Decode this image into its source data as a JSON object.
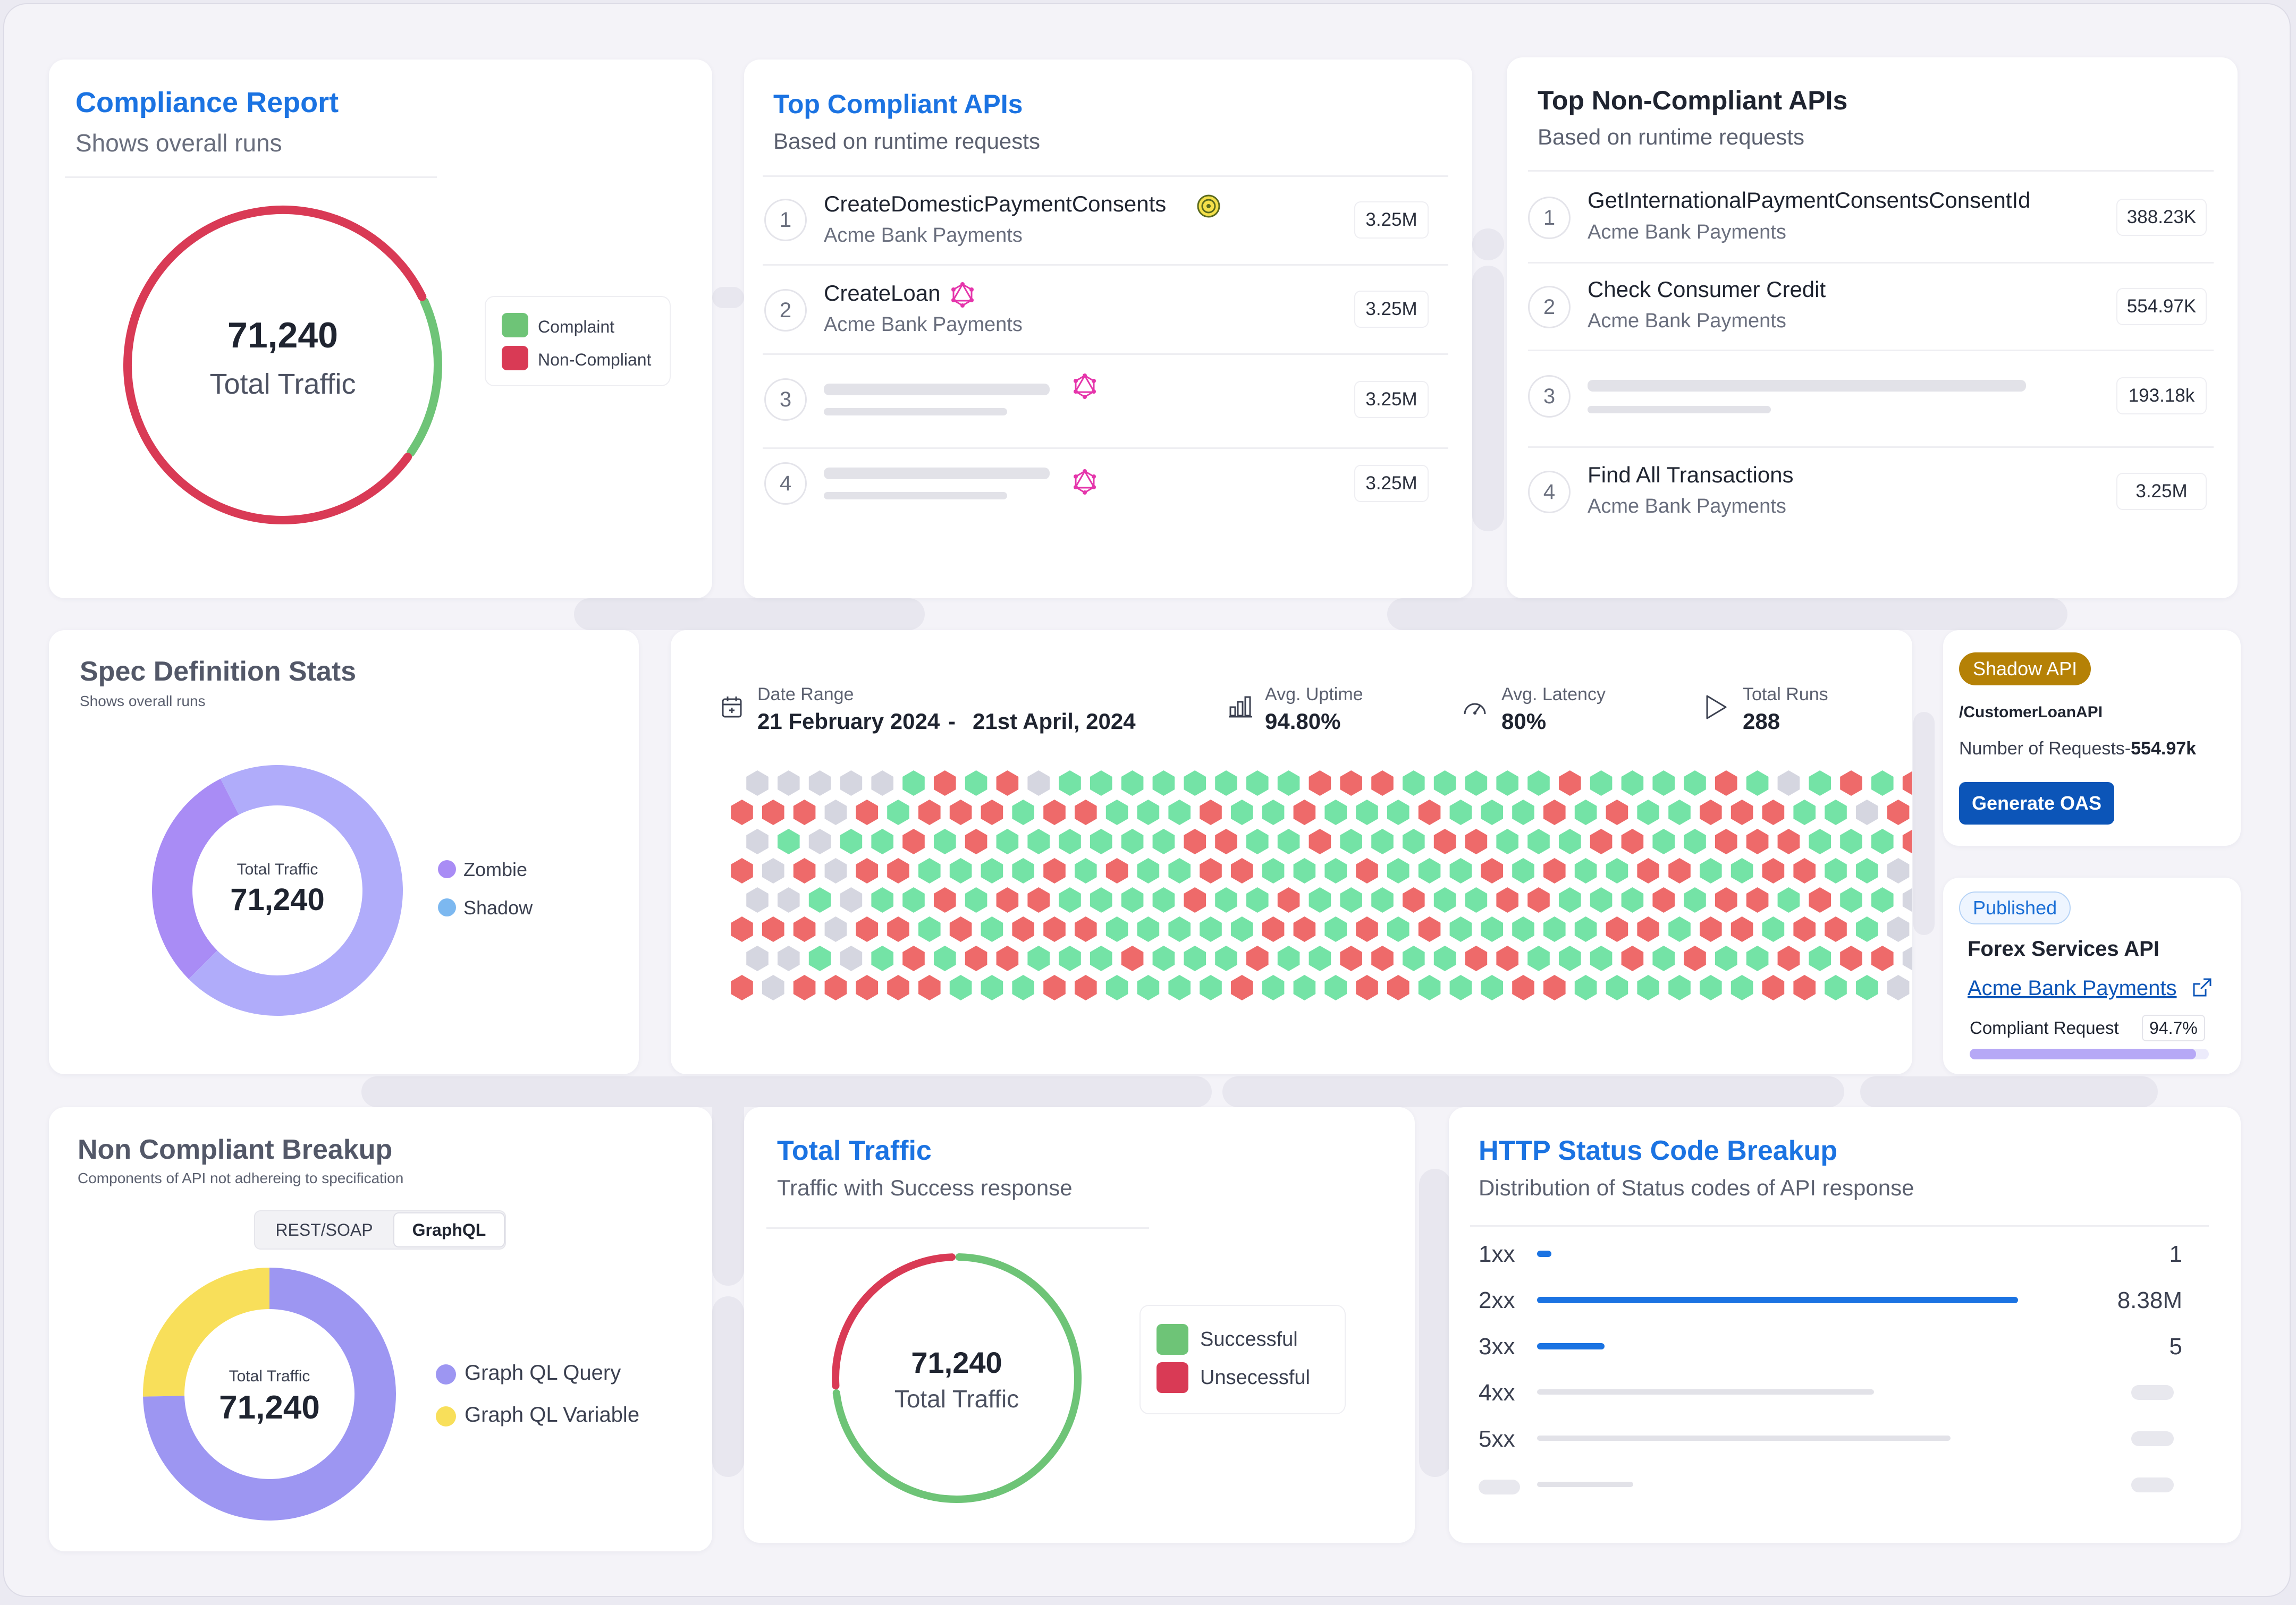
{
  "compliance_report": {
    "title": "Compliance Report",
    "subtitle": "Shows overall runs",
    "total_value": "71,240",
    "total_label": "Total Traffic",
    "legend": [
      {
        "label": "Complaint",
        "color": "#6ec477"
      },
      {
        "label": "Non-Compliant",
        "color": "#d93a55"
      }
    ],
    "compliant_fraction": 0.12
  },
  "top_compliant": {
    "title": "Top Compliant APIs",
    "subtitle": "Based on runtime requests",
    "items": [
      {
        "rank": "1",
        "name": "CreateDomesticPaymentConsents",
        "org": "Acme Bank Payments",
        "count": "3.25M",
        "icon": "target-icon"
      },
      {
        "rank": "2",
        "name": "CreateLoan",
        "org": "Acme Bank Payments",
        "count": "3.25M",
        "icon": "graphql-icon"
      },
      {
        "rank": "3",
        "name": "",
        "org": "",
        "count": "3.25M",
        "icon": "graphql-icon"
      },
      {
        "rank": "4",
        "name": "",
        "org": "",
        "count": "3.25M",
        "icon": "graphql-icon"
      }
    ]
  },
  "top_noncompliant": {
    "title": "Top Non-Compliant APIs",
    "subtitle": "Based on runtime requests",
    "items": [
      {
        "rank": "1",
        "name": "GetInternationalPaymentConsentsConsentId",
        "org": "Acme Bank Payments",
        "count": "388.23K"
      },
      {
        "rank": "2",
        "name": "Check Consumer Credit",
        "org": "Acme Bank Payments",
        "count": "554.97K"
      },
      {
        "rank": "3",
        "name": "",
        "org": "",
        "count": "193.18k"
      },
      {
        "rank": "4",
        "name": "Find All Transactions",
        "org": "Acme Bank Payments",
        "count": "3.25M"
      }
    ]
  },
  "spec_stats": {
    "title": "Spec Definition Stats",
    "subtitle": "Shows overall runs",
    "center_label": "Total Traffic",
    "center_value": "71,240",
    "legend": [
      {
        "label": "Zombie",
        "color": "#a98cf5"
      },
      {
        "label": "Shadow",
        "color": "#7cb8f0"
      }
    ],
    "zombie_fraction": 0.3
  },
  "runs": {
    "date_range_label": "Date Range",
    "date_from": "21 February 2024",
    "date_sep": "-",
    "date_to": "21st April, 2024",
    "uptime_label": "Avg. Uptime",
    "uptime_value": "94.80%",
    "latency_label": "Avg. Latency",
    "latency_value": "80%",
    "total_runs_label": "Total Runs",
    "total_runs_value": "288",
    "colors": {
      "success": "#74e3a6",
      "failure": "#ee6a6a",
      "idle": "#d5d6e0"
    }
  },
  "shadow_api": {
    "badge": "Shadow API",
    "path": "/CustomerLoanAPI",
    "requests_label": "Number of Requests-",
    "requests_value": "554.97k",
    "button": "Generate OAS"
  },
  "published_api": {
    "badge": "Published",
    "name": "Forex Services API",
    "link": "Acme Bank Payments",
    "compliant_label": "Compliant Request",
    "compliant_value": "94.7%",
    "compliant_fraction": 0.947
  },
  "non_compliant_breakup": {
    "title": "Non Compliant Breakup",
    "subtitle": "Components of API not adhereing to specification",
    "tabs": [
      "REST/SOAP",
      "GraphQL"
    ],
    "active_tab": "GraphQL",
    "center_label": "Total Traffic",
    "center_value": "71,240",
    "legend": [
      {
        "label": "Graph QL Query",
        "color": "#9d96f2"
      },
      {
        "label": "Graph QL Variable",
        "color": "#f8df5a"
      }
    ],
    "variable_fraction": 0.25
  },
  "total_traffic": {
    "title": "Total Traffic",
    "subtitle": "Traffic with Success response",
    "center_value": "71,240",
    "center_label": "Total Traffic",
    "legend": [
      {
        "label": "Successful",
        "color": "#6ec477"
      },
      {
        "label": "Unsecessful",
        "color": "#d93a55"
      }
    ],
    "unsuccessful_fraction": 0.2
  },
  "http_status": {
    "title": "HTTP Status Code Breakup",
    "subtitle": "Distribution of Status codes of API response",
    "rows": [
      {
        "code": "1xx",
        "value": "1",
        "fraction": 0.03,
        "active": true
      },
      {
        "code": "2xx",
        "value": "8.38M",
        "fraction": 1.0,
        "active": true
      },
      {
        "code": "3xx",
        "value": "5",
        "fraction": 0.14,
        "active": true
      },
      {
        "code": "4xx",
        "value": "",
        "fraction": 0.7,
        "active": false
      },
      {
        "code": "5xx",
        "value": "",
        "fraction": 0.86,
        "active": false
      },
      {
        "code": "",
        "value": "",
        "fraction": 0.2,
        "active": false
      }
    ],
    "bar_color": "#1b73e2"
  }
}
